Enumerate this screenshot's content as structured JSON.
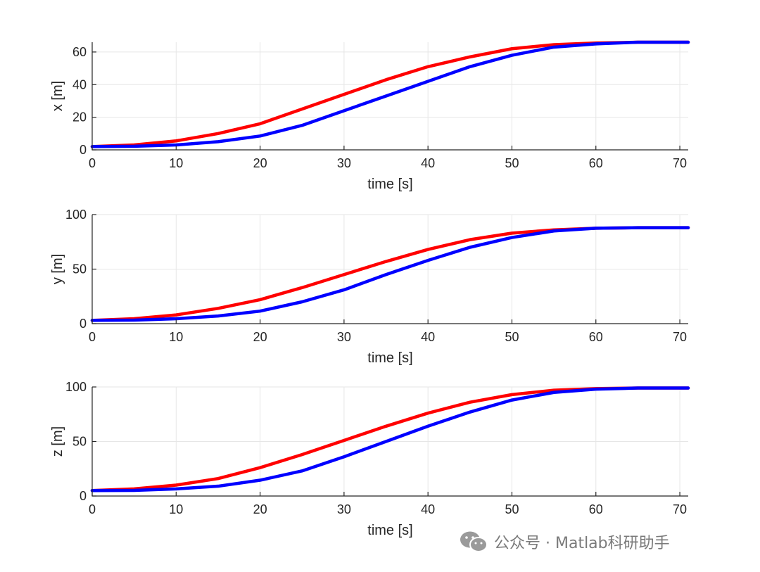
{
  "chart_data": [
    {
      "type": "line",
      "xlabel": "time [s]",
      "ylabel": "x [m]",
      "xlim": [
        0,
        71
      ],
      "ylim": [
        0,
        66
      ],
      "xticks": [
        0,
        10,
        20,
        30,
        40,
        50,
        60,
        70
      ],
      "yticks": [
        0,
        20,
        40,
        60
      ],
      "grid": true,
      "series": [
        {
          "color": "#ff0000",
          "x": [
            0,
            5,
            10,
            15,
            20,
            25,
            30,
            35,
            40,
            45,
            50,
            55,
            60,
            65,
            71
          ],
          "y": [
            2,
            3,
            5.5,
            10,
            16,
            25,
            34,
            43,
            51,
            57,
            62,
            64.5,
            65.5,
            66,
            66
          ]
        },
        {
          "color": "#0000ff",
          "x": [
            0,
            5,
            10,
            15,
            20,
            25,
            30,
            35,
            40,
            45,
            50,
            55,
            60,
            65,
            71
          ],
          "y": [
            2,
            2.2,
            3,
            5,
            8.5,
            15,
            24,
            33,
            42,
            51,
            58,
            63,
            65,
            66,
            66
          ]
        }
      ]
    },
    {
      "type": "line",
      "xlabel": "time [s]",
      "ylabel": "y [m]",
      "xlim": [
        0,
        71
      ],
      "ylim": [
        0,
        100
      ],
      "xticks": [
        0,
        10,
        20,
        30,
        40,
        50,
        60,
        70
      ],
      "yticks": [
        0,
        50,
        100
      ],
      "grid": true,
      "series": [
        {
          "color": "#ff0000",
          "x": [
            0,
            5,
            10,
            15,
            20,
            25,
            30,
            35,
            40,
            45,
            50,
            55,
            60,
            65,
            71
          ],
          "y": [
            3,
            4.5,
            8,
            14,
            22,
            33,
            45,
            57,
            68,
            77,
            83,
            86,
            87.5,
            88,
            88
          ]
        },
        {
          "color": "#0000ff",
          "x": [
            0,
            5,
            10,
            15,
            20,
            25,
            30,
            35,
            40,
            45,
            50,
            55,
            60,
            65,
            71
          ],
          "y": [
            3,
            3.2,
            4.5,
            7,
            11.5,
            20,
            31,
            45,
            58,
            70,
            79,
            85,
            87.5,
            88,
            88
          ]
        }
      ]
    },
    {
      "type": "line",
      "xlabel": "time [s]",
      "ylabel": "z [m]",
      "xlim": [
        0,
        71
      ],
      "ylim": [
        0,
        100
      ],
      "xticks": [
        0,
        10,
        20,
        30,
        40,
        50,
        60,
        70
      ],
      "yticks": [
        0,
        50,
        100
      ],
      "grid": true,
      "series": [
        {
          "color": "#ff0000",
          "x": [
            0,
            5,
            10,
            15,
            20,
            25,
            30,
            35,
            40,
            45,
            50,
            55,
            60,
            65,
            71
          ],
          "y": [
            5,
            6.5,
            10,
            16,
            26,
            38,
            51,
            64,
            76,
            86,
            93,
            97,
            98.5,
            99,
            99
          ]
        },
        {
          "color": "#0000ff",
          "x": [
            0,
            5,
            10,
            15,
            20,
            25,
            30,
            35,
            40,
            45,
            50,
            55,
            60,
            65,
            71
          ],
          "y": [
            5,
            5.2,
            6.5,
            9,
            14.5,
            23,
            36,
            50,
            64,
            77,
            88,
            95,
            98,
            99,
            99
          ]
        }
      ]
    }
  ],
  "watermark": {
    "icon": "wechat-icon",
    "text": "公众号 · Matlab科研助手"
  }
}
